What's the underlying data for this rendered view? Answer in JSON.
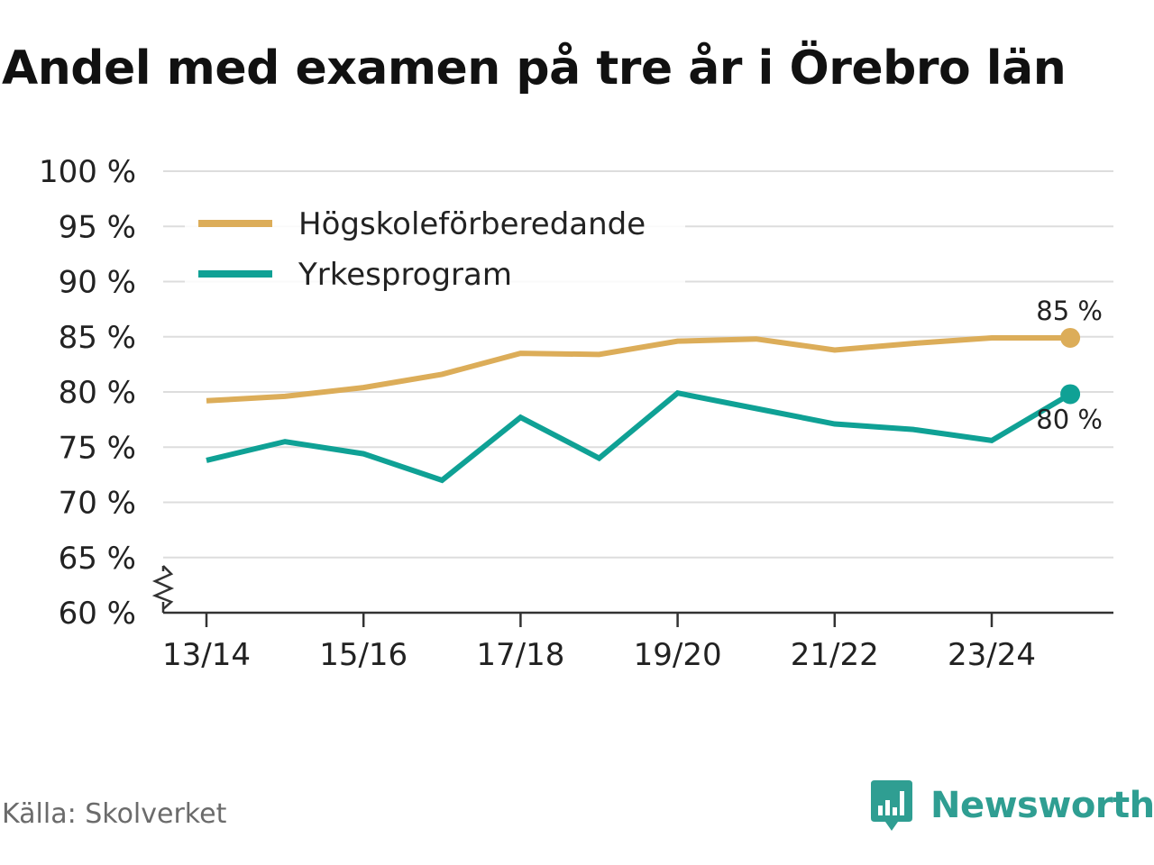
{
  "title": "Andel med examen på tre år i Örebro län",
  "source": "Källa: Skolverket",
  "brand": {
    "name": "Newsworthy",
    "logo_icon": "newsworthy-logo-icon",
    "color": "#2f9e92"
  },
  "chart_data": {
    "type": "line",
    "title": "Andel med examen på tre år i Örebro län",
    "xlabel": "",
    "ylabel": "",
    "ylim": [
      60,
      100
    ],
    "y_axis_break": true,
    "grid": true,
    "legend_position": "top-left",
    "y_ticks": [
      {
        "value": 100,
        "label": "100 %"
      },
      {
        "value": 95,
        "label": "95 %"
      },
      {
        "value": 90,
        "label": "90 %"
      },
      {
        "value": 85,
        "label": "85 %"
      },
      {
        "value": 80,
        "label": "80 %"
      },
      {
        "value": 75,
        "label": "75 %"
      },
      {
        "value": 70,
        "label": "70 %"
      },
      {
        "value": 65,
        "label": "65 %"
      },
      {
        "value": 60,
        "label": "60 %"
      }
    ],
    "categories": [
      "13/14",
      "14/15",
      "15/16",
      "16/17",
      "17/18",
      "18/19",
      "19/20",
      "20/21",
      "21/22",
      "22/23",
      "23/24",
      "24/25"
    ],
    "x_tick_labels": [
      {
        "index": 0,
        "label": "13/14"
      },
      {
        "index": 2,
        "label": "15/16"
      },
      {
        "index": 4,
        "label": "17/18"
      },
      {
        "index": 6,
        "label": "19/20"
      },
      {
        "index": 8,
        "label": "21/22"
      },
      {
        "index": 10,
        "label": "23/24"
      }
    ],
    "series": [
      {
        "name": "Högskoleförberedande",
        "color": "#dcad59",
        "values": [
          79.2,
          79.6,
          80.4,
          81.6,
          83.5,
          83.4,
          84.6,
          84.8,
          83.8,
          84.4,
          84.9,
          84.9
        ],
        "end_label": "85 %",
        "end_label_position": "above"
      },
      {
        "name": "Yrkesprogram",
        "color": "#0fa195",
        "values": [
          73.8,
          75.5,
          74.4,
          72.0,
          77.7,
          74.0,
          79.9,
          78.5,
          77.1,
          76.6,
          75.6,
          79.8
        ],
        "end_label": "80 %",
        "end_label_position": "below"
      }
    ]
  }
}
